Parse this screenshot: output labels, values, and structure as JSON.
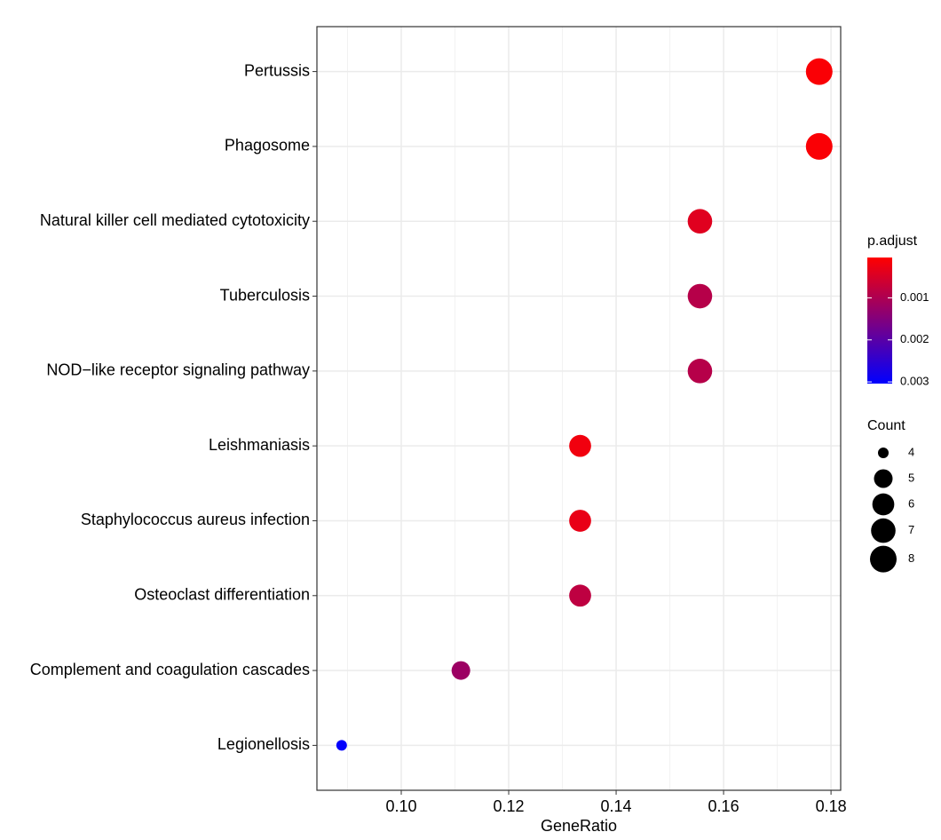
{
  "chart_data": {
    "type": "dot",
    "categories": [
      "Pertussis",
      "Phagosome",
      "Natural killer cell mediated cytotoxicity",
      "Tuberculosis",
      "NOD−like receptor signaling pathway",
      "Leishmaniasis",
      "Staphylococcus aureus infection",
      "Osteoclast differentiation",
      "Complement and coagulation cascades",
      "Legionellosis"
    ],
    "values": [
      0.1778,
      0.1778,
      0.1556,
      0.1556,
      0.1556,
      0.1333,
      0.1333,
      0.1333,
      0.1111,
      0.0889
    ],
    "count": [
      8,
      8,
      7,
      7,
      7,
      6,
      6,
      6,
      5,
      4
    ],
    "p_adjust": [
      0.0001,
      0.0001,
      0.0004,
      0.0009,
      0.0009,
      0.0002,
      0.0003,
      0.0008,
      0.0012,
      0.003
    ],
    "x_label": "GeneRatio",
    "xlim": [
      0.0843,
      0.1818
    ],
    "xticks": [
      {
        "value": 0.1,
        "label": "0.10"
      },
      {
        "value": 0.12,
        "label": "0.12"
      },
      {
        "value": 0.14,
        "label": "0.14"
      },
      {
        "value": 0.16,
        "label": "0.16"
      },
      {
        "value": 0.18,
        "label": "0.18"
      }
    ],
    "xminor": [
      0.09,
      0.11,
      0.13,
      0.15,
      0.17
    ],
    "grid": true,
    "color_title": "p.adjust",
    "color_lim": [
      4e-05,
      0.00304
    ],
    "color_ticks": [
      0.001,
      0.002,
      0.003
    ],
    "low_color": "#ff0000",
    "high_color": "#0000ff",
    "size_title": "Count",
    "size_lim": [
      4,
      8
    ],
    "size_breaks": [
      4,
      5,
      6,
      7,
      8
    ],
    "legend": "right"
  }
}
